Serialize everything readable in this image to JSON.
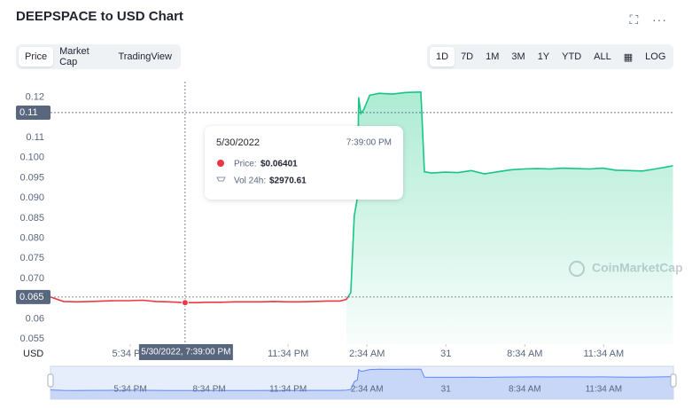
{
  "header": {
    "title": "DEEPSPACE to USD Chart",
    "tabs": [
      "Price",
      "Market Cap",
      "TradingView"
    ],
    "ranges": [
      "1D",
      "7D",
      "1M",
      "3M",
      "1Y",
      "YTD",
      "ALL"
    ],
    "log": "LOG"
  },
  "chart_data": {
    "type": "line",
    "axis_unit": "USD",
    "watermark": "CoinMarketCap",
    "x": [
      "2022-05-30T14:32",
      "2022-05-30T15:02",
      "2022-05-30T15:32",
      "2022-05-30T16:02",
      "2022-05-30T16:32",
      "2022-05-30T17:02",
      "2022-05-30T17:32",
      "2022-05-30T18:02",
      "2022-05-30T18:32",
      "2022-05-30T19:02",
      "2022-05-30T19:39",
      "2022-05-30T20:02",
      "2022-05-30T20:32",
      "2022-05-30T21:02",
      "2022-05-30T21:32",
      "2022-05-30T22:02",
      "2022-05-30T22:32",
      "2022-05-30T23:02",
      "2022-05-30T23:32",
      "2022-05-31T00:02",
      "2022-05-31T00:32",
      "2022-05-31T01:02",
      "2022-05-31T01:32",
      "2022-05-31T01:47",
      "2022-05-31T01:57",
      "2022-05-31T02:05",
      "2022-05-31T02:12",
      "2022-05-31T02:15",
      "2022-05-31T02:20",
      "2022-05-31T02:27",
      "2022-05-31T02:40",
      "2022-05-31T03:02",
      "2022-05-31T03:32",
      "2022-05-31T04:02",
      "2022-05-31T04:32",
      "2022-05-31T04:37",
      "2022-05-31T04:45",
      "2022-05-31T05:02",
      "2022-05-31T05:32",
      "2022-05-31T06:02",
      "2022-05-31T06:32",
      "2022-05-31T07:02",
      "2022-05-31T07:32",
      "2022-05-31T08:02",
      "2022-05-31T08:32",
      "2022-05-31T09:02",
      "2022-05-31T09:32",
      "2022-05-31T10:02",
      "2022-05-31T10:32",
      "2022-05-31T11:02",
      "2022-05-31T11:32",
      "2022-05-31T12:02",
      "2022-05-31T12:32",
      "2022-05-31T13:02",
      "2022-05-31T13:32",
      "2022-05-31T14:02",
      "2022-05-31T14:12"
    ],
    "series": [
      {
        "name": "Price",
        "color": "#16c784",
        "down_color": "#ea3943",
        "values": [
          0.0654,
          0.0643,
          0.0642,
          0.0643,
          0.0644,
          0.0645,
          0.0645,
          0.0646,
          0.0643,
          0.0642,
          0.06401,
          0.064,
          0.0641,
          0.0641,
          0.0642,
          0.0642,
          0.0642,
          0.0643,
          0.0642,
          0.0642,
          0.0643,
          0.0644,
          0.0644,
          0.0648,
          0.0665,
          0.0855,
          0.09,
          0.115,
          0.111,
          0.112,
          0.1155,
          0.116,
          0.1158,
          0.1162,
          0.1163,
          0.1163,
          0.0965,
          0.0962,
          0.0964,
          0.0963,
          0.0968,
          0.096,
          0.0965,
          0.097,
          0.0972,
          0.0973,
          0.0972,
          0.0974,
          0.0973,
          0.0972,
          0.0974,
          0.0969,
          0.0968,
          0.0967,
          0.0972,
          0.0978,
          0.098
        ]
      }
    ],
    "xlim": [
      "2022-05-30T14:32",
      "2022-05-31T14:13"
    ],
    "xticks": [
      {
        "value": "2022-05-30T17:34",
        "label": "5:34 PM"
      },
      {
        "value": "2022-05-30T20:34",
        "label": "8:34 PM"
      },
      {
        "value": "2022-05-30T23:34",
        "label": "11:34 PM"
      },
      {
        "value": "2022-05-31T02:34",
        "label": "2:34 AM"
      },
      {
        "value": "2022-05-31T05:34",
        "label": "31"
      },
      {
        "value": "2022-05-31T08:34",
        "label": "8:34 AM"
      },
      {
        "value": "2022-05-31T11:34",
        "label": "11:34 AM"
      }
    ],
    "ylim": [
      0.0537,
      0.1189
    ],
    "yticks": [
      0.055,
      0.06,
      {
        "value": 0.07,
        "label": "0.070"
      },
      0.075,
      {
        "value": 0.08,
        "label": "0.080"
      },
      0.085,
      {
        "value": 0.09,
        "label": "0.090"
      },
      0.095,
      {
        "value": 0.1,
        "label": "0.100"
      },
      {
        "value": 0.105,
        "label": "0.11"
      },
      {
        "value": 0.115,
        "label": "0.12"
      }
    ],
    "grid": false,
    "price_lines": [
      {
        "value": 0.1112,
        "label": "0.11"
      },
      {
        "value": 0.0654,
        "label": "0.065"
      }
    ],
    "tooltip": {
      "x": "2022-05-30T19:39",
      "date": "5/30/2022",
      "time": "7:39:00 PM",
      "price_label": "Price:",
      "price": "$0.06401",
      "volume_label": "Vol 24h:",
      "volume": "$2970.61",
      "crosshair_label": "5/30/2022, 7:39:00 PM"
    }
  }
}
